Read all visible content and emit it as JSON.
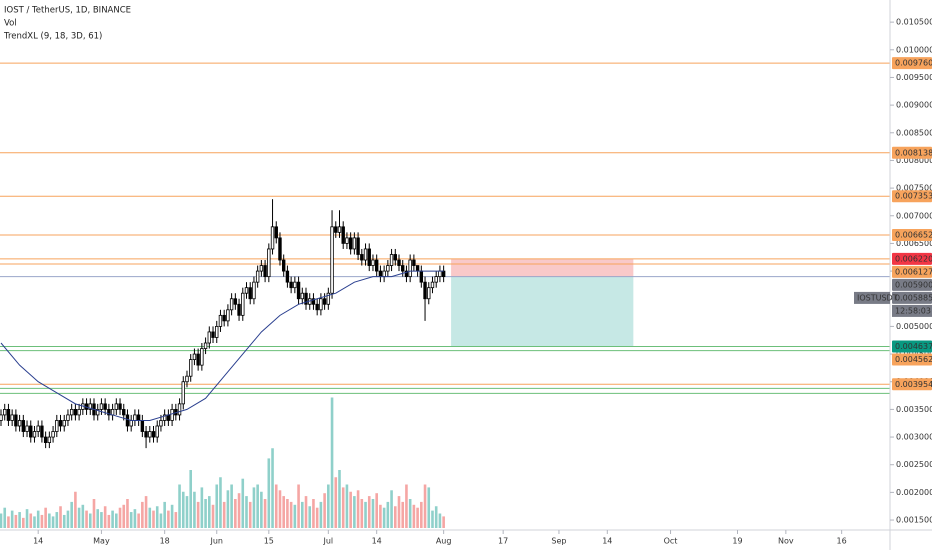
{
  "chart_data": {
    "type": "candlestick",
    "title": "IOST / TetherUS, 1D, BINANCE",
    "volume_title": "Vol",
    "indicator_title": "TrendXL (9, 18, 3D, 61)",
    "x": [
      0,
      1,
      2,
      3,
      4,
      5,
      6,
      7,
      8,
      9,
      10,
      11,
      12,
      13,
      14,
      15,
      16,
      17,
      18,
      19,
      20,
      21,
      22,
      23,
      24,
      25,
      26,
      27,
      28,
      29,
      30,
      31,
      32,
      33,
      34,
      35,
      36,
      37,
      38,
      39,
      40,
      41,
      42,
      43,
      44,
      45,
      46,
      47,
      48,
      49,
      50,
      51,
      52,
      53,
      54,
      55,
      56,
      57,
      58,
      59,
      60,
      61,
      62,
      63,
      64,
      65,
      66,
      67,
      68,
      69,
      70,
      71,
      72,
      73,
      74,
      75,
      76,
      77,
      78,
      79,
      80,
      81,
      82,
      83,
      84,
      85,
      86,
      87,
      88,
      89,
      90,
      91,
      92,
      93,
      94,
      95,
      96,
      97,
      98,
      99,
      100,
      101,
      102,
      103,
      104,
      105,
      106,
      107,
      108,
      109,
      110,
      111,
      112,
      113,
      114,
      115,
      116,
      117,
      118,
      119
    ],
    "open": [
      0.0033,
      0.0034,
      0.0035,
      0.0033,
      0.0034,
      0.0032,
      0.0033,
      0.0031,
      0.0032,
      0.003,
      0.0031,
      0.0032,
      0.003,
      0.0029,
      0.003,
      0.0031,
      0.0033,
      0.0032,
      0.0033,
      0.0034,
      0.0035,
      0.0034,
      0.0035,
      0.0036,
      0.0035,
      0.0036,
      0.0034,
      0.0035,
      0.0036,
      0.0035,
      0.0034,
      0.0035,
      0.0036,
      0.0035,
      0.0034,
      0.0032,
      0.0033,
      0.0034,
      0.0033,
      0.0031,
      0.003,
      0.0031,
      0.003,
      0.0032,
      0.0033,
      0.0034,
      0.0033,
      0.0035,
      0.0034,
      0.0036,
      0.004,
      0.0041,
      0.0044,
      0.0045,
      0.0043,
      0.0046,
      0.0047,
      0.0049,
      0.0048,
      0.005,
      0.0052,
      0.0051,
      0.0053,
      0.0055,
      0.0054,
      0.0052,
      0.0056,
      0.0057,
      0.0055,
      0.0058,
      0.006,
      0.0061,
      0.0059,
      0.0064,
      0.0068,
      0.0066,
      0.0062,
      0.006,
      0.0058,
      0.0057,
      0.0058,
      0.0055,
      0.0056,
      0.0054,
      0.0055,
      0.0054,
      0.0053,
      0.0055,
      0.0054,
      0.0056,
      0.0068,
      0.0067,
      0.0068,
      0.0065,
      0.0066,
      0.0064,
      0.0066,
      0.0063,
      0.0062,
      0.0064,
      0.0061,
      0.0062,
      0.006,
      0.0059,
      0.006,
      0.0061,
      0.0063,
      0.0062,
      0.0061,
      0.006,
      0.0059,
      0.0062,
      0.0061,
      0.006,
      0.0058,
      0.0055,
      0.0057,
      0.0058,
      0.0059,
      0.006
    ],
    "high": [
      0.0035,
      0.0036,
      0.0036,
      0.0035,
      0.0035,
      0.0034,
      0.0034,
      0.0033,
      0.0033,
      0.0032,
      0.0033,
      0.0033,
      0.0031,
      0.0031,
      0.0032,
      0.0034,
      0.0034,
      0.0034,
      0.0035,
      0.0036,
      0.0036,
      0.0036,
      0.0037,
      0.0037,
      0.0037,
      0.0037,
      0.0036,
      0.0037,
      0.0037,
      0.0036,
      0.0036,
      0.0037,
      0.0037,
      0.0036,
      0.0035,
      0.0034,
      0.0035,
      0.0035,
      0.0034,
      0.0032,
      0.0032,
      0.0032,
      0.0033,
      0.0034,
      0.0035,
      0.0035,
      0.0036,
      0.0036,
      0.0037,
      0.0041,
      0.0042,
      0.0045,
      0.0046,
      0.0046,
      0.0047,
      0.0048,
      0.005,
      0.005,
      0.0051,
      0.0053,
      0.0053,
      0.0054,
      0.0056,
      0.0056,
      0.0055,
      0.0057,
      0.0058,
      0.0058,
      0.0059,
      0.0061,
      0.0062,
      0.0062,
      0.0065,
      0.0073,
      0.0069,
      0.0067,
      0.0063,
      0.0061,
      0.0059,
      0.0059,
      0.0059,
      0.0057,
      0.0057,
      0.0056,
      0.0056,
      0.0055,
      0.0056,
      0.0056,
      0.0057,
      0.0071,
      0.0069,
      0.0071,
      0.0069,
      0.0067,
      0.0067,
      0.0067,
      0.0067,
      0.0064,
      0.0065,
      0.0065,
      0.0063,
      0.0063,
      0.0061,
      0.0061,
      0.0062,
      0.0064,
      0.0064,
      0.0063,
      0.0062,
      0.0061,
      0.0063,
      0.0063,
      0.0061,
      0.0061,
      0.0059,
      0.0058,
      0.0059,
      0.006,
      0.0061,
      0.0061
    ],
    "low": [
      0.0032,
      0.0033,
      0.0032,
      0.0032,
      0.0031,
      0.0031,
      0.003,
      0.003,
      0.0029,
      0.0029,
      0.003,
      0.0029,
      0.0028,
      0.0028,
      0.0029,
      0.003,
      0.0031,
      0.0031,
      0.0032,
      0.0033,
      0.0033,
      0.0033,
      0.0034,
      0.0034,
      0.0034,
      0.0033,
      0.0033,
      0.0034,
      0.0034,
      0.0033,
      0.0033,
      0.0034,
      0.0034,
      0.0033,
      0.0031,
      0.0031,
      0.0032,
      0.0032,
      0.003,
      0.0028,
      0.0029,
      0.0029,
      0.0029,
      0.0031,
      0.0032,
      0.0032,
      0.0032,
      0.0033,
      0.0033,
      0.0035,
      0.0039,
      0.004,
      0.0043,
      0.0042,
      0.0042,
      0.0045,
      0.0046,
      0.0047,
      0.0047,
      0.0049,
      0.005,
      0.005,
      0.0052,
      0.0053,
      0.0051,
      0.0051,
      0.0055,
      0.0054,
      0.0054,
      0.0057,
      0.0059,
      0.0058,
      0.0058,
      0.0063,
      0.0065,
      0.0061,
      0.0059,
      0.0057,
      0.0056,
      0.0056,
      0.0054,
      0.0054,
      0.0053,
      0.0053,
      0.0053,
      0.0052,
      0.0052,
      0.0053,
      0.0053,
      0.0055,
      0.0066,
      0.0066,
      0.0064,
      0.0064,
      0.0063,
      0.0063,
      0.0062,
      0.0061,
      0.0061,
      0.006,
      0.006,
      0.0059,
      0.0058,
      0.0058,
      0.0059,
      0.006,
      0.0061,
      0.006,
      0.0059,
      0.0058,
      0.0058,
      0.006,
      0.0059,
      0.0057,
      0.0051,
      0.0054,
      0.0056,
      0.0057,
      0.0058,
      0.0058
    ],
    "close": [
      0.0034,
      0.0035,
      0.0033,
      0.0034,
      0.0032,
      0.0033,
      0.0031,
      0.0032,
      0.003,
      0.0031,
      0.0032,
      0.003,
      0.0029,
      0.003,
      0.0031,
      0.0033,
      0.0032,
      0.0033,
      0.0034,
      0.0035,
      0.0034,
      0.0035,
      0.0036,
      0.0035,
      0.0036,
      0.0034,
      0.0035,
      0.0036,
      0.0035,
      0.0034,
      0.0035,
      0.0036,
      0.0035,
      0.0034,
      0.0032,
      0.0033,
      0.0034,
      0.0033,
      0.0031,
      0.003,
      0.0031,
      0.003,
      0.0032,
      0.0033,
      0.0034,
      0.0033,
      0.0035,
      0.0034,
      0.0036,
      0.004,
      0.0041,
      0.0044,
      0.0045,
      0.0043,
      0.0046,
      0.0047,
      0.0049,
      0.0048,
      0.005,
      0.0052,
      0.0051,
      0.0053,
      0.0055,
      0.0054,
      0.0052,
      0.0056,
      0.0057,
      0.0055,
      0.0058,
      0.006,
      0.0061,
      0.0059,
      0.0064,
      0.0068,
      0.0066,
      0.0062,
      0.006,
      0.0058,
      0.0057,
      0.0058,
      0.0055,
      0.0056,
      0.0054,
      0.0055,
      0.0054,
      0.0053,
      0.0055,
      0.0054,
      0.0056,
      0.0068,
      0.0067,
      0.0068,
      0.0065,
      0.0066,
      0.0064,
      0.0066,
      0.0063,
      0.0062,
      0.0064,
      0.0061,
      0.0062,
      0.006,
      0.0059,
      0.006,
      0.0061,
      0.0063,
      0.0062,
      0.0061,
      0.006,
      0.0059,
      0.0062,
      0.0061,
      0.006,
      0.0058,
      0.0055,
      0.0057,
      0.0058,
      0.0059,
      0.006,
      0.0059
    ],
    "volume": [
      10,
      14,
      8,
      12,
      9,
      11,
      7,
      13,
      10,
      8,
      12,
      9,
      14,
      10,
      8,
      11,
      15,
      9,
      12,
      18,
      25,
      14,
      16,
      12,
      10,
      20,
      13,
      11,
      15,
      9,
      12,
      10,
      14,
      16,
      20,
      11,
      13,
      10,
      18,
      22,
      14,
      12,
      15,
      10,
      18,
      12,
      16,
      11,
      30,
      25,
      22,
      40,
      25,
      18,
      28,
      20,
      22,
      16,
      30,
      35,
      18,
      26,
      30,
      20,
      24,
      34,
      22,
      18,
      28,
      30,
      25,
      20,
      48,
      55,
      30,
      26,
      22,
      20,
      18,
      16,
      30,
      18,
      22,
      15,
      20,
      14,
      18,
      24,
      30,
      90,
      35,
      40,
      28,
      30,
      25,
      22,
      26,
      20,
      18,
      22,
      20,
      24,
      16,
      14,
      18,
      26,
      15,
      22,
      18,
      30,
      20,
      16,
      14,
      18,
      30,
      28,
      12,
      15,
      10,
      8
    ],
    "volume_ylim": [
      0,
      100
    ],
    "up_color": "#ffffff",
    "down_color": "#000000",
    "edge_color": "#000000",
    "volume_up_color": "#8fd0ca",
    "volume_down_color": "#f5a6a4",
    "ma": {
      "color": "#2a3f8f",
      "x": [
        0,
        5,
        10,
        15,
        20,
        25,
        30,
        35,
        40,
        45,
        50,
        55,
        60,
        65,
        70,
        75,
        80,
        85,
        90,
        95,
        100,
        105,
        110,
        115,
        119
      ],
      "values": [
        0.0047,
        0.0043,
        0.004,
        0.0038,
        0.0036,
        0.0035,
        0.0034,
        0.0033,
        0.0033,
        0.0034,
        0.0035,
        0.0037,
        0.0041,
        0.0045,
        0.0049,
        0.0052,
        0.0054,
        0.0055,
        0.0056,
        0.0058,
        0.0059,
        0.0059,
        0.006,
        0.006,
        0.006
      ]
    },
    "xlim": [
      0,
      239
    ],
    "xticks": [
      {
        "value": 10,
        "label": "14"
      },
      {
        "value": 27,
        "label": "May"
      },
      {
        "value": 44,
        "label": "18"
      },
      {
        "value": 58,
        "label": "Jun"
      },
      {
        "value": 72,
        "label": "15"
      },
      {
        "value": 88,
        "label": "Jul"
      },
      {
        "value": 101,
        "label": "14"
      },
      {
        "value": 119,
        "label": "Aug"
      },
      {
        "value": 135,
        "label": "17"
      },
      {
        "value": 150,
        "label": "Sep"
      },
      {
        "value": 163,
        "label": "14"
      },
      {
        "value": 180,
        "label": "Oct"
      },
      {
        "value": 198,
        "label": "19"
      },
      {
        "value": 211,
        "label": "Nov"
      },
      {
        "value": 226,
        "label": "16"
      }
    ],
    "ylim": [
      0.00132,
      0.0109
    ],
    "yticks": [
      {
        "value": 0.0015,
        "label": "0.001500"
      },
      {
        "value": 0.002,
        "label": "0.002000"
      },
      {
        "value": 0.0025,
        "label": "0.002500"
      },
      {
        "value": 0.003,
        "label": "0.003000"
      },
      {
        "value": 0.0035,
        "label": "0.003500"
      },
      {
        "value": 0.004,
        "label": "0.004000"
      },
      {
        "value": 0.0045,
        "label": "0.004500"
      },
      {
        "value": 0.005,
        "label": "0.005000"
      },
      {
        "value": 0.0055,
        "label": "0.005500"
      },
      {
        "value": 0.006,
        "label": "0.006000"
      },
      {
        "value": 0.0065,
        "label": "0.006500"
      },
      {
        "value": 0.007,
        "label": "0.007000"
      },
      {
        "value": 0.0075,
        "label": "0.007500"
      },
      {
        "value": 0.008,
        "label": "0.008000"
      },
      {
        "value": 0.0085,
        "label": "0.008500"
      },
      {
        "value": 0.009,
        "label": "0.009000"
      },
      {
        "value": 0.0095,
        "label": "0.009500"
      },
      {
        "value": 0.01,
        "label": "0.010000"
      },
      {
        "value": 0.0105,
        "label": "0.010500"
      }
    ],
    "levels": [
      {
        "value": 0.00976,
        "label": "0.009760",
        "color": "#f7a35c",
        "label_color": "#f7a35c"
      },
      {
        "value": 0.008138,
        "label": "0.008138",
        "color": "#f7a35c",
        "label_color": "#f7a35c"
      },
      {
        "value": 0.007353,
        "label": "0.007353",
        "color": "#f7a35c",
        "label_color": "#f7a35c"
      },
      {
        "value": 0.006652,
        "label": "0.006652",
        "color": "#f7a35c",
        "label_color": "#f7a35c"
      },
      {
        "value": 0.00622,
        "label": "0.006220",
        "color": "#f7a35c",
        "label_color": "#f23645"
      },
      {
        "value": 0.006127,
        "label": "0.006127",
        "color": "#f7a35c",
        "label_color": "#f7a35c"
      },
      {
        "value": 0.004637,
        "label": "0.004637",
        "color": "#6cbf7a",
        "label_color": "#089981"
      },
      {
        "value": 0.004562,
        "label": "0.004562",
        "color": "#6cbf7a",
        "label_color": "#f7a35c"
      },
      {
        "value": 0.003954,
        "label": "0.003954",
        "color": "#f7a35c",
        "label_color": "#f7a35c"
      },
      {
        "value": 0.00388,
        "color": "#6cbf7a"
      },
      {
        "value": 0.00379,
        "color": "#6cbf7a"
      }
    ],
    "position": {
      "x": [
        121,
        170
      ],
      "entry": {
        "value": 0.0059,
        "label": "0.005900"
      },
      "stop": 0.00622,
      "target": 0.004637,
      "stop_color": "#f9c9c9",
      "target_color": "#c6e8e5",
      "entry_color": "#787b86"
    },
    "last": {
      "value": 0.005885,
      "label": "0.005885",
      "symbol": "IOSTUSDT",
      "countdown": "12:58:03",
      "color": "#787b86"
    }
  }
}
